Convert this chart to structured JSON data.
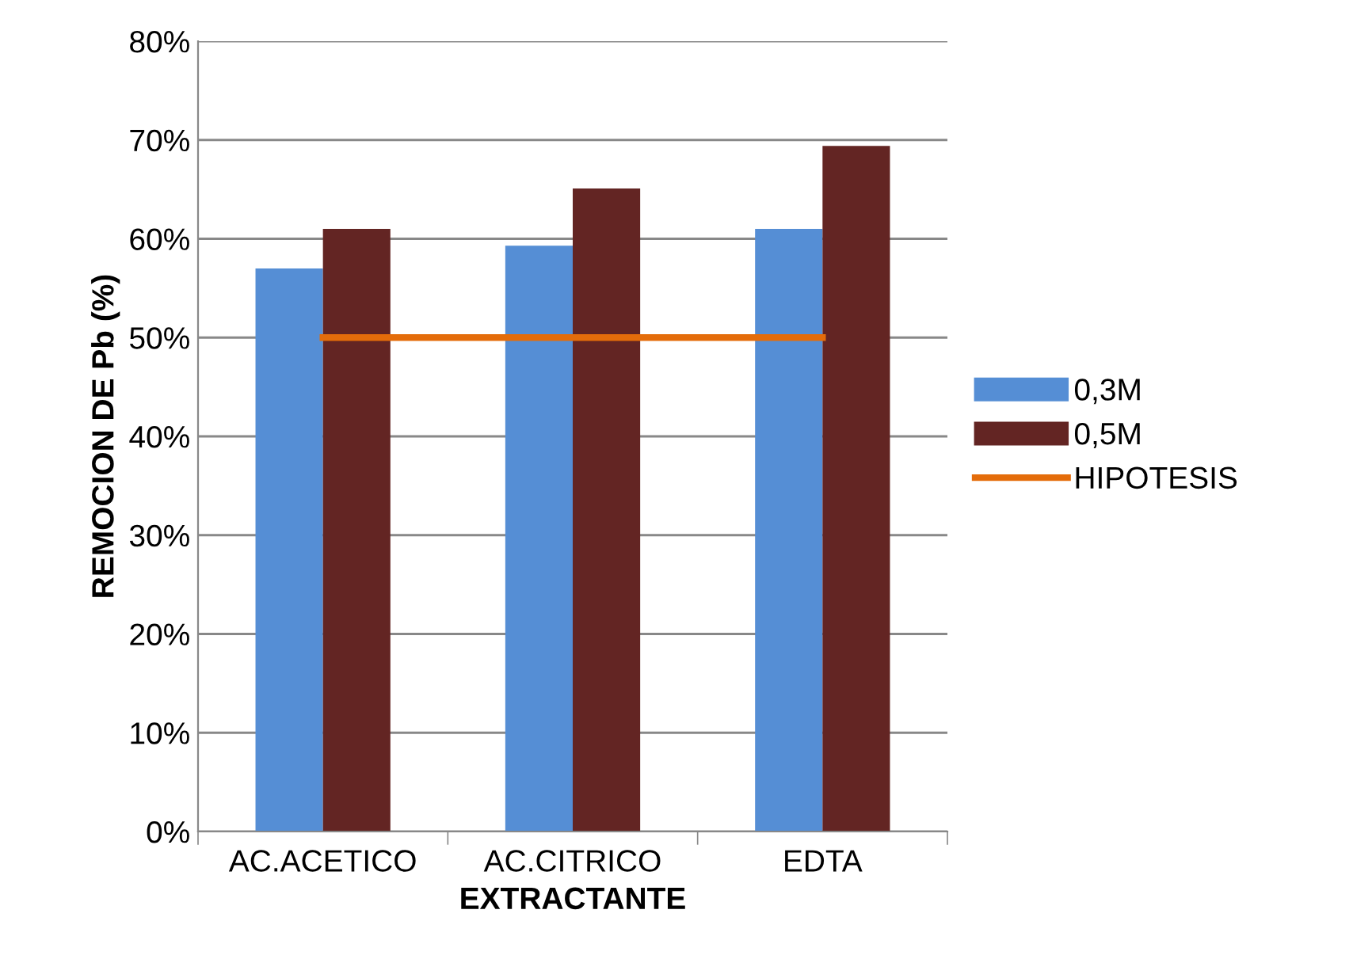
{
  "chart_data": {
    "type": "bar",
    "xlabel": "EXTRACTANTE",
    "ylabel": "REMOCION DE Pb (%)",
    "categories": [
      "AC.ACETICO",
      "AC.CITRICO",
      "EDTA"
    ],
    "series": [
      {
        "name": "0,3M",
        "color": "#558ed5",
        "values": [
          57,
          59.3,
          61
        ]
      },
      {
        "name": "0,5M",
        "color": "#632523",
        "values": [
          61,
          65.1,
          69.4
        ]
      },
      {
        "name": "HIPOTESIS",
        "type": "line",
        "color": "#e46c0a",
        "values": [
          50,
          50,
          50
        ]
      }
    ],
    "ylim": [
      0,
      80
    ],
    "yticks": [
      {
        "value": 0,
        "label": "0%"
      },
      {
        "value": 10,
        "label": "10%"
      },
      {
        "value": 20,
        "label": "20%"
      },
      {
        "value": 30,
        "label": "30%"
      },
      {
        "value": 40,
        "label": "40%"
      },
      {
        "value": 50,
        "label": "50%"
      },
      {
        "value": 60,
        "label": "60%"
      },
      {
        "value": 70,
        "label": "70%"
      },
      {
        "value": 80,
        "label": "80%"
      }
    ],
    "grid": "y",
    "legend": "right"
  }
}
